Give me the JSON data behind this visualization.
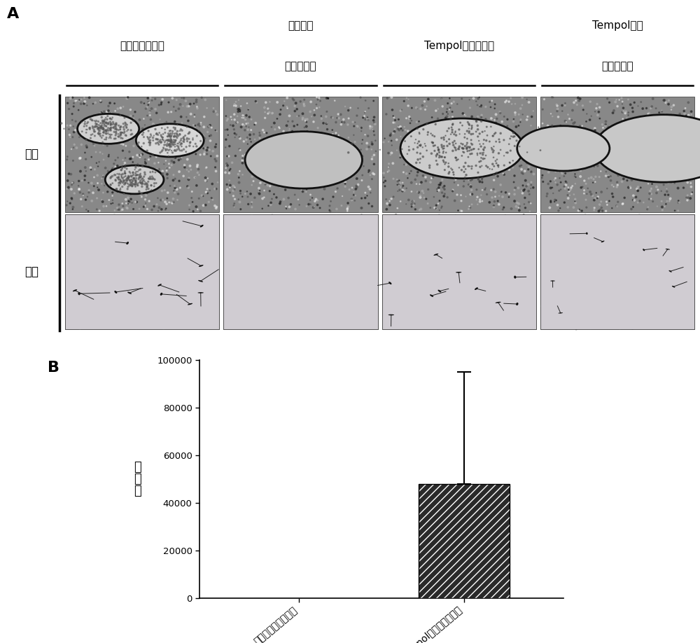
{
  "panel_a_col_labels_1": [
    "生理盐水对照组",
    "生理盐水",
    "Tempol给药对照组",
    "Tempol给药"
  ],
  "panel_a_col_labels_2": [
    "",
    "无精子症组",
    "",
    "无精子症组"
  ],
  "panel_a_row_labels": [
    "附睾",
    "精子"
  ],
  "panel_b_categories": [
    "生理盐水无精子症组",
    "Tempol给药无精子症组"
  ],
  "panel_b_values": [
    0,
    48000
  ],
  "panel_b_errors_up": [
    0,
    47000
  ],
  "panel_b_ylabel_chars": [
    "精",
    "子",
    "数"
  ],
  "panel_b_ylim": [
    0,
    100000
  ],
  "panel_b_yticks": [
    0,
    20000,
    40000,
    60000,
    80000,
    100000
  ],
  "panel_b_label": "B",
  "panel_a_label": "A",
  "background_color": "#ffffff",
  "font_size_panel": 16,
  "font_size_col_label": 11,
  "font_size_row_label": 12,
  "font_size_axis": 10,
  "font_size_ylabel": 13
}
